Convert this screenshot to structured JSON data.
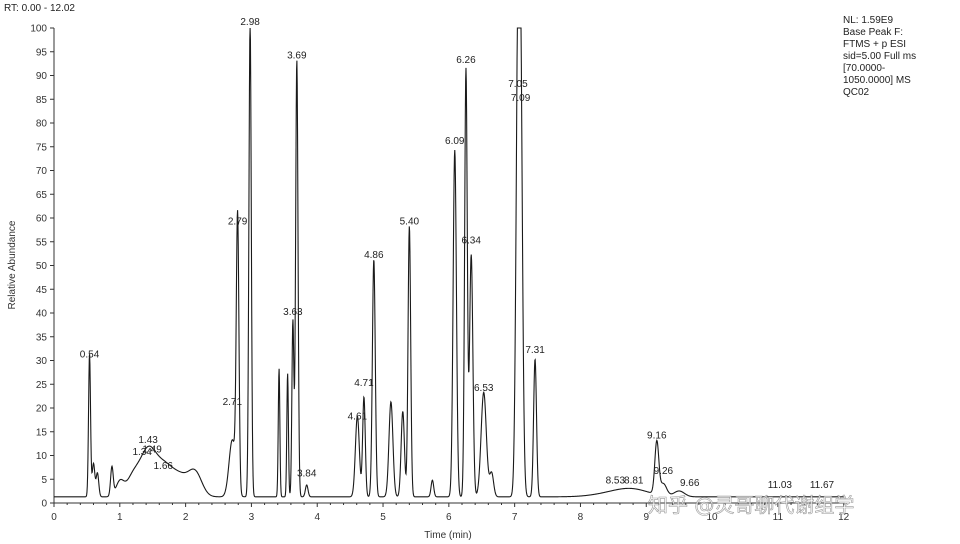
{
  "header": {
    "rt_range": "RT: 0.00 - 12.02"
  },
  "info": {
    "lines": [
      "NL: 1.59E9",
      "Base Peak F:",
      "FTMS + p ESI",
      "sid=5.00  Full ms",
      "[70.0000-",
      "1050.0000]  MS",
      "QC02"
    ]
  },
  "watermark": "知乎 @灵哥聊代谢组学",
  "colors": {
    "trace": "#1a1a1a",
    "axis": "#333333",
    "leader": "#555555"
  },
  "chart_data": {
    "type": "line",
    "title": "",
    "xlabel": "Time (min)",
    "ylabel": "Relative Abundance",
    "xlim": [
      0,
      12.02
    ],
    "ylim": [
      0,
      100
    ],
    "x_ticks": [
      "0",
      "1",
      "2",
      "3",
      "4",
      "5",
      "6",
      "7",
      "8",
      "9",
      "10",
      "11",
      "12"
    ],
    "y_ticks": [
      "0",
      "5",
      "10",
      "15",
      "20",
      "25",
      "30",
      "35",
      "40",
      "45",
      "50",
      "55",
      "60",
      "65",
      "70",
      "75",
      "80",
      "85",
      "90",
      "95",
      "100"
    ],
    "grid": false,
    "legend": "none",
    "baseline": 1.3,
    "peaks": [
      {
        "rt": 0.54,
        "h": 30,
        "w": 0.015
      },
      {
        "rt": 0.6,
        "h": 7,
        "w": 0.02
      },
      {
        "rt": 0.66,
        "h": 5,
        "w": 0.02
      },
      {
        "rt": 0.88,
        "h": 6,
        "w": 0.02
      },
      {
        "rt": 1.0,
        "h": 3,
        "w": 0.06
      },
      {
        "rt": 1.2,
        "h": 4,
        "w": 0.1
      },
      {
        "rt": 1.43,
        "h": 9.5,
        "w": 0.12
      },
      {
        "rt": 1.66,
        "h": 5,
        "w": 0.12
      },
      {
        "rt": 1.9,
        "h": 4.5,
        "w": 0.15
      },
      {
        "rt": 2.15,
        "h": 4.5,
        "w": 0.1
      },
      {
        "rt": 2.71,
        "h": 12,
        "w": 0.05
      },
      {
        "rt": 2.79,
        "h": 57,
        "w": 0.02
      },
      {
        "rt": 2.98,
        "h": 100,
        "w": 0.018
      },
      {
        "rt": 3.42,
        "h": 27,
        "w": 0.012
      },
      {
        "rt": 3.55,
        "h": 26,
        "w": 0.012
      },
      {
        "rt": 3.63,
        "h": 37,
        "w": 0.015
      },
      {
        "rt": 3.69,
        "h": 92,
        "w": 0.018
      },
      {
        "rt": 3.84,
        "h": 2.5,
        "w": 0.02
      },
      {
        "rt": 4.61,
        "h": 17,
        "w": 0.03
      },
      {
        "rt": 4.71,
        "h": 21,
        "w": 0.02
      },
      {
        "rt": 4.86,
        "h": 50,
        "w": 0.022
      },
      {
        "rt": 5.12,
        "h": 20,
        "w": 0.03
      },
      {
        "rt": 5.3,
        "h": 18,
        "w": 0.025
      },
      {
        "rt": 5.4,
        "h": 57,
        "w": 0.02
      },
      {
        "rt": 5.75,
        "h": 3.5,
        "w": 0.02
      },
      {
        "rt": 6.09,
        "h": 73,
        "w": 0.025
      },
      {
        "rt": 6.26,
        "h": 90,
        "w": 0.02
      },
      {
        "rt": 6.34,
        "h": 51,
        "w": 0.025
      },
      {
        "rt": 6.53,
        "h": 22,
        "w": 0.04
      },
      {
        "rt": 6.65,
        "h": 5,
        "w": 0.03
      },
      {
        "rt": 7.05,
        "h": 84,
        "w": 0.03
      },
      {
        "rt": 7.09,
        "h": 78,
        "w": 0.03
      },
      {
        "rt": 7.31,
        "h": 29,
        "w": 0.022
      },
      {
        "rt": 8.53,
        "h": 0.8,
        "w": 0.3
      },
      {
        "rt": 8.81,
        "h": 1.2,
        "w": 0.25
      },
      {
        "rt": 9.16,
        "h": 11,
        "w": 0.03
      },
      {
        "rt": 9.26,
        "h": 2.5,
        "w": 0.05
      },
      {
        "rt": 9.5,
        "h": 1.2,
        "w": 0.08
      }
    ],
    "labels": [
      {
        "text": "0.54",
        "rt": 0.54,
        "y": 30
      },
      {
        "text": "1.34",
        "rt": 1.34,
        "y": 9.5
      },
      {
        "text": "1.43",
        "rt": 1.43,
        "y": 12
      },
      {
        "text": "1.49",
        "rt": 1.49,
        "y": 10
      },
      {
        "text": "1.66",
        "rt": 1.66,
        "y": 6.5
      },
      {
        "text": "2.71",
        "rt": 2.71,
        "y": 20
      },
      {
        "text": "2.79",
        "rt": 2.79,
        "y": 58
      },
      {
        "text": "2.98",
        "rt": 2.98,
        "y": 100
      },
      {
        "text": "3.63",
        "rt": 3.63,
        "y": 39
      },
      {
        "text": "3.69",
        "rt": 3.69,
        "y": 93
      },
      {
        "text": "3.84",
        "rt": 3.84,
        "y": 5
      },
      {
        "text": "4.61",
        "rt": 4.61,
        "y": 17
      },
      {
        "text": "4.71",
        "rt": 4.71,
        "y": 24
      },
      {
        "text": "4.86",
        "rt": 4.86,
        "y": 51
      },
      {
        "text": "5.40",
        "rt": 5.4,
        "y": 58
      },
      {
        "text": "6.09",
        "rt": 6.09,
        "y": 75
      },
      {
        "text": "6.26",
        "rt": 6.26,
        "y": 92
      },
      {
        "text": "6.34",
        "rt": 6.34,
        "y": 54
      },
      {
        "text": "6.53",
        "rt": 6.53,
        "y": 23
      },
      {
        "text": "7.05",
        "rt": 7.05,
        "y": 87
      },
      {
        "text": "7.09",
        "rt": 7.09,
        "y": 84
      },
      {
        "text": "7.31",
        "rt": 7.31,
        "y": 31
      },
      {
        "text": "8.53",
        "rt": 8.53,
        "y": 3.5
      },
      {
        "text": "8.81",
        "rt": 8.81,
        "y": 3.5
      },
      {
        "text": "9.16",
        "rt": 9.16,
        "y": 13
      },
      {
        "text": "9.26",
        "rt": 9.26,
        "y": 5.5
      },
      {
        "text": "9.66",
        "rt": 9.66,
        "y": 3
      },
      {
        "text": "11.03",
        "rt": 11.03,
        "y": 2.5
      },
      {
        "text": "11.67",
        "rt": 11.67,
        "y": 2.5
      }
    ]
  }
}
